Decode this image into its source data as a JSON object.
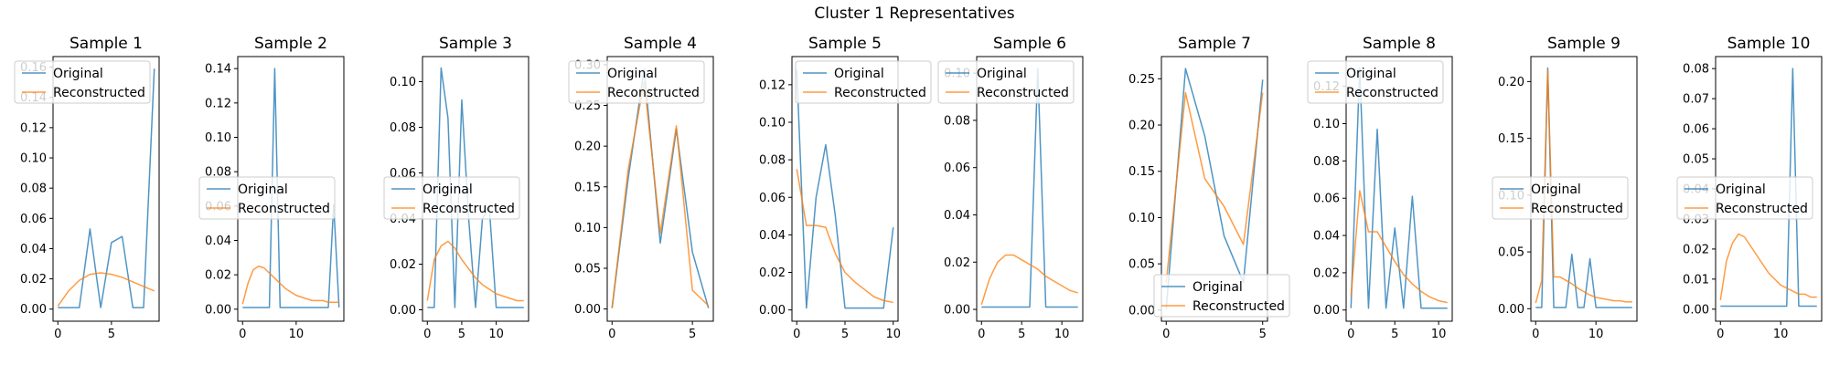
{
  "figure": {
    "title": "Cluster 1 Representatives"
  },
  "colors": {
    "original": "#1f77b4",
    "reconstructed": "#ff7f0e"
  },
  "chart_data": [
    {
      "type": "line",
      "title": "Sample 1",
      "x": [
        0,
        1,
        2,
        3,
        4,
        5,
        6,
        7,
        8,
        9
      ],
      "series": [
        {
          "name": "Original",
          "values": [
            0.001,
            0.001,
            0.001,
            0.053,
            0.001,
            0.044,
            0.048,
            0.001,
            0.001,
            0.159
          ]
        },
        {
          "name": "Reconstructed",
          "values": [
            0.002,
            0.012,
            0.019,
            0.023,
            0.024,
            0.023,
            0.021,
            0.018,
            0.015,
            0.012
          ]
        }
      ],
      "xlim": [
        -0.45,
        9.45
      ],
      "ylim": [
        -0.008,
        0.167
      ],
      "xticks": [
        0,
        5
      ],
      "yticks": [
        0.0,
        0.02,
        0.04,
        0.06,
        0.08,
        0.1,
        0.12,
        0.14,
        0.16
      ],
      "ytick_labels": [
        "0.00",
        "0.02",
        "0.04",
        "0.06",
        "0.08",
        "0.10",
        "0.12",
        "0.14",
        "0.16"
      ],
      "legend": "upper-left"
    },
    {
      "type": "line",
      "title": "Sample 2",
      "x": [
        0,
        1,
        2,
        3,
        4,
        5,
        6,
        7,
        8,
        9,
        10,
        11,
        12,
        13,
        14,
        15,
        16,
        17,
        18
      ],
      "series": [
        {
          "name": "Original",
          "values": [
            0.001,
            0.001,
            0.001,
            0.001,
            0.001,
            0.001,
            0.14,
            0.001,
            0.001,
            0.001,
            0.001,
            0.001,
            0.001,
            0.001,
            0.001,
            0.001,
            0.001,
            0.061,
            0.001
          ]
        },
        {
          "name": "Reconstructed",
          "values": [
            0.003,
            0.015,
            0.023,
            0.025,
            0.024,
            0.021,
            0.018,
            0.015,
            0.012,
            0.01,
            0.008,
            0.007,
            0.006,
            0.005,
            0.005,
            0.005,
            0.004,
            0.004,
            0.004
          ]
        }
      ],
      "xlim": [
        -0.9,
        18.9
      ],
      "ylim": [
        -0.007,
        0.147
      ],
      "xticks": [
        0,
        10
      ],
      "yticks": [
        0.0,
        0.02,
        0.04,
        0.06,
        0.08,
        0.1,
        0.12,
        0.14
      ],
      "ytick_labels": [
        "0.00",
        "0.02",
        "0.04",
        "0.06",
        "0.08",
        "0.10",
        "0.12",
        "0.14"
      ],
      "legend": "center-left"
    },
    {
      "type": "line",
      "title": "Sample 3",
      "x": [
        0,
        1,
        2,
        3,
        4,
        5,
        6,
        7,
        8,
        9,
        10,
        11,
        12,
        13,
        14
      ],
      "series": [
        {
          "name": "Original",
          "values": [
            0.001,
            0.001,
            0.106,
            0.084,
            0.001,
            0.092,
            0.04,
            0.001,
            0.04,
            0.045,
            0.001,
            0.001,
            0.001,
            0.001,
            0.001
          ]
        },
        {
          "name": "Reconstructed",
          "values": [
            0.004,
            0.022,
            0.028,
            0.03,
            0.027,
            0.022,
            0.018,
            0.014,
            0.011,
            0.009,
            0.007,
            0.006,
            0.005,
            0.004,
            0.004
          ]
        }
      ],
      "xlim": [
        -0.7,
        14.7
      ],
      "ylim": [
        -0.005,
        0.111
      ],
      "xticks": [
        0,
        5,
        10
      ],
      "yticks": [
        0.0,
        0.02,
        0.04,
        0.06,
        0.08,
        0.1
      ],
      "ytick_labels": [
        "0.00",
        "0.02",
        "0.04",
        "0.06",
        "0.08",
        "0.10"
      ],
      "legend": "center-left"
    },
    {
      "type": "line",
      "title": "Sample 4",
      "x": [
        0,
        1,
        2,
        3,
        4,
        5,
        6
      ],
      "series": [
        {
          "name": "Original",
          "values": [
            0.001,
            0.16,
            0.295,
            0.081,
            0.221,
            0.07,
            0.001
          ]
        },
        {
          "name": "Reconstructed",
          "values": [
            0.001,
            0.171,
            0.279,
            0.093,
            0.225,
            0.023,
            0.004
          ]
        }
      ],
      "xlim": [
        -0.3,
        6.3
      ],
      "ylim": [
        -0.015,
        0.31
      ],
      "xticks": [
        0,
        5
      ],
      "yticks": [
        0.0,
        0.05,
        0.1,
        0.15,
        0.2,
        0.25,
        0.3
      ],
      "ytick_labels": [
        "0.00",
        "0.05",
        "0.10",
        "0.15",
        "0.20",
        "0.25",
        "0.30"
      ],
      "legend": "upper-left"
    },
    {
      "type": "line",
      "title": "Sample 5",
      "x": [
        0,
        1,
        2,
        3,
        4,
        5,
        6,
        7,
        8,
        9,
        10
      ],
      "series": [
        {
          "name": "Original",
          "values": [
            0.128,
            0.001,
            0.06,
            0.088,
            0.05,
            0.001,
            0.001,
            0.001,
            0.001,
            0.001,
            0.044
          ]
        },
        {
          "name": "Reconstructed",
          "values": [
            0.075,
            0.045,
            0.045,
            0.044,
            0.03,
            0.02,
            0.015,
            0.011,
            0.007,
            0.005,
            0.004
          ]
        }
      ],
      "xlim": [
        -0.5,
        10.5
      ],
      "ylim": [
        -0.006,
        0.135
      ],
      "xticks": [
        0,
        5,
        10
      ],
      "yticks": [
        0.0,
        0.02,
        0.04,
        0.06,
        0.08,
        0.1,
        0.12
      ],
      "ytick_labels": [
        "0.00",
        "0.02",
        "0.04",
        "0.06",
        "0.08",
        "0.10",
        "0.12"
      ],
      "legend": "upper-right"
    },
    {
      "type": "line",
      "title": "Sample 6",
      "x": [
        0,
        1,
        2,
        3,
        4,
        5,
        6,
        7,
        8,
        9,
        10,
        11,
        12
      ],
      "series": [
        {
          "name": "Original",
          "values": [
            0.001,
            0.001,
            0.001,
            0.001,
            0.001,
            0.001,
            0.001,
            0.102,
            0.001,
            0.001,
            0.001,
            0.001,
            0.001
          ]
        },
        {
          "name": "Reconstructed",
          "values": [
            0.002,
            0.013,
            0.02,
            0.023,
            0.023,
            0.021,
            0.019,
            0.017,
            0.014,
            0.012,
            0.01,
            0.008,
            0.007
          ]
        }
      ],
      "xlim": [
        -0.6,
        12.6
      ],
      "ylim": [
        -0.005,
        0.107
      ],
      "xticks": [
        0,
        5,
        10
      ],
      "yticks": [
        0.0,
        0.02,
        0.04,
        0.06,
        0.08,
        0.1
      ],
      "ytick_labels": [
        "0.00",
        "0.02",
        "0.04",
        "0.06",
        "0.08",
        "0.10"
      ],
      "legend": "upper-left"
    },
    {
      "type": "line",
      "title": "Sample 7",
      "x": [
        0,
        1,
        2,
        3,
        4,
        5
      ],
      "series": [
        {
          "name": "Original",
          "values": [
            0.001,
            0.261,
            0.188,
            0.08,
            0.03,
            0.249
          ]
        },
        {
          "name": "Reconstructed",
          "values": [
            0.03,
            0.235,
            0.142,
            0.112,
            0.071,
            0.235
          ]
        }
      ],
      "xlim": [
        -0.25,
        5.25
      ],
      "ylim": [
        -0.012,
        0.274
      ],
      "xticks": [
        0,
        5
      ],
      "yticks": [
        0.0,
        0.05,
        0.1,
        0.15,
        0.2,
        0.25
      ],
      "ytick_labels": [
        "0.00",
        "0.05",
        "0.10",
        "0.15",
        "0.20",
        "0.25"
      ],
      "legend": "lower-center"
    },
    {
      "type": "line",
      "title": "Sample 8",
      "x": [
        0,
        1,
        2,
        3,
        4,
        5,
        6,
        7,
        8,
        9,
        10,
        11
      ],
      "series": [
        {
          "name": "Original",
          "values": [
            0.001,
            0.13,
            0.001,
            0.097,
            0.001,
            0.044,
            0.001,
            0.061,
            0.001,
            0.001,
            0.001,
            0.001
          ]
        },
        {
          "name": "Reconstructed",
          "values": [
            0.007,
            0.064,
            0.042,
            0.042,
            0.034,
            0.026,
            0.019,
            0.014,
            0.01,
            0.007,
            0.005,
            0.004
          ]
        }
      ],
      "xlim": [
        -0.55,
        11.55
      ],
      "ylim": [
        -0.006,
        0.136
      ],
      "xticks": [
        0,
        5,
        10
      ],
      "yticks": [
        0.0,
        0.02,
        0.04,
        0.06,
        0.08,
        0.1,
        0.12
      ],
      "ytick_labels": [
        "0.00",
        "0.02",
        "0.04",
        "0.06",
        "0.08",
        "0.10",
        "0.12"
      ],
      "legend": "upper-left"
    },
    {
      "type": "line",
      "title": "Sample 9",
      "x": [
        0,
        1,
        2,
        3,
        4,
        5,
        6,
        7,
        8,
        9,
        10,
        11,
        12,
        13,
        14,
        15,
        16
      ],
      "series": [
        {
          "name": "Original",
          "values": [
            0.001,
            0.001,
            0.212,
            0.001,
            0.001,
            0.001,
            0.048,
            0.001,
            0.001,
            0.044,
            0.001,
            0.001,
            0.001,
            0.001,
            0.001,
            0.001,
            0.001
          ]
        },
        {
          "name": "Reconstructed",
          "values": [
            0.005,
            0.025,
            0.21,
            0.028,
            0.028,
            0.025,
            0.022,
            0.018,
            0.015,
            0.012,
            0.01,
            0.009,
            0.008,
            0.007,
            0.007,
            0.006,
            0.006
          ]
        }
      ],
      "xlim": [
        -0.8,
        16.8
      ],
      "ylim": [
        -0.011,
        0.222
      ],
      "xticks": [
        0,
        10
      ],
      "yticks": [
        0.0,
        0.05,
        0.1,
        0.15,
        0.2
      ],
      "ytick_labels": [
        "0.00",
        "0.05",
        "0.10",
        "0.15",
        "0.20"
      ],
      "legend": "center-left"
    },
    {
      "type": "line",
      "title": "Sample 10",
      "x": [
        0,
        1,
        2,
        3,
        4,
        5,
        6,
        7,
        8,
        9,
        10,
        11,
        12,
        13,
        14,
        15,
        16
      ],
      "series": [
        {
          "name": "Original",
          "values": [
            0.001,
            0.001,
            0.001,
            0.001,
            0.001,
            0.001,
            0.001,
            0.001,
            0.001,
            0.001,
            0.001,
            0.001,
            0.08,
            0.001,
            0.001,
            0.001,
            0.001
          ]
        },
        {
          "name": "Reconstructed",
          "values": [
            0.003,
            0.016,
            0.022,
            0.025,
            0.024,
            0.021,
            0.018,
            0.015,
            0.012,
            0.01,
            0.008,
            0.007,
            0.006,
            0.005,
            0.005,
            0.004,
            0.004
          ]
        }
      ],
      "xlim": [
        -0.8,
        16.8
      ],
      "ylim": [
        -0.004,
        0.084
      ],
      "xticks": [
        0,
        10
      ],
      "yticks": [
        0.0,
        0.01,
        0.02,
        0.03,
        0.04,
        0.05,
        0.06,
        0.07,
        0.08
      ],
      "ytick_labels": [
        "0.00",
        "0.01",
        "0.02",
        "0.03",
        "0.04",
        "0.05",
        "0.06",
        "0.07",
        "0.08"
      ],
      "legend": "center-left"
    }
  ]
}
